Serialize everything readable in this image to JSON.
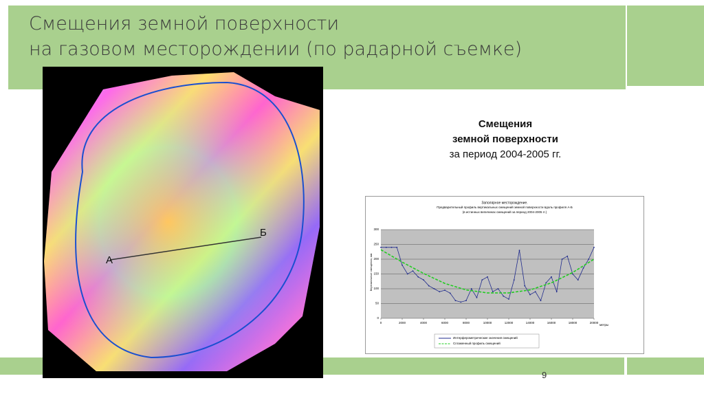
{
  "header": {
    "title_line1": "Смещения земной поверхности",
    "title_line2": "на газовом месторождении (по радарной съемке)"
  },
  "map": {
    "label_a": "А",
    "label_b": "Б"
  },
  "caption": {
    "line1": "Смещения",
    "line2": "земной поверхности",
    "line3": "за период 2004-2005 гг."
  },
  "chart_data": {
    "type": "line",
    "title": "Заполярное месторождение.",
    "subtitle": "Предварительный профиль вертикальных смещений земной поверхности вдоль профиля А-Б",
    "note": "(в истинных величинах смещений за период 2004-2005 гг.)",
    "x_label": "метры",
    "y_label": "Вертикальные смещения, мм",
    "xlim": [
      0,
      20000
    ],
    "xticks": [
      0,
      2000,
      4000,
      6000,
      8000,
      10000,
      12000,
      14000,
      16000,
      18000,
      20000
    ],
    "ylim": [
      0,
      300
    ],
    "yticks": [
      0,
      50,
      100,
      150,
      200,
      250,
      300
    ],
    "grid": true,
    "series": [
      {
        "name": "Интерферометрические значения смещений",
        "color": "#1f2a8c",
        "style": "solid",
        "x": [
          0,
          500,
          1000,
          1500,
          2000,
          2500,
          3000,
          3500,
          4000,
          4500,
          5000,
          5500,
          6000,
          6500,
          7000,
          7500,
          8000,
          8500,
          9000,
          9500,
          10000,
          10500,
          11000,
          11500,
          12000,
          12500,
          13000,
          13500,
          14000,
          14500,
          15000,
          15500,
          16000,
          16500,
          17000,
          17500,
          18000,
          18500,
          19000,
          19500,
          20000
        ],
        "values": [
          240,
          240,
          240,
          240,
          180,
          150,
          160,
          140,
          130,
          110,
          100,
          90,
          95,
          85,
          60,
          55,
          60,
          100,
          70,
          130,
          140,
          90,
          100,
          75,
          65,
          130,
          230,
          110,
          80,
          90,
          60,
          120,
          140,
          90,
          200,
          210,
          150,
          130,
          170,
          200,
          240
        ]
      },
      {
        "name": "Сглаженный профиль смещений",
        "color": "#22cc22",
        "style": "dashed",
        "x": [
          0,
          2000,
          4000,
          6000,
          8000,
          10000,
          12000,
          14000,
          16000,
          18000,
          20000
        ],
        "values": [
          232,
          190,
          152,
          118,
          96,
          86,
          86,
          96,
          120,
          155,
          200
        ]
      }
    ]
  },
  "page": {
    "number": "9"
  }
}
